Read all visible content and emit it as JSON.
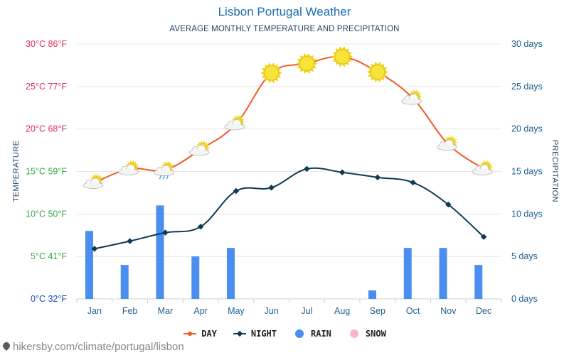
{
  "title": "Lisbon Portugal Weather",
  "subtitle": "AVERAGE MONTHLY TEMPERATURE AND PRECIPITATION",
  "left_axis_title": "TEMPERATURE",
  "right_axis_title": "PRECIPITATION",
  "source": "hikersby.com/climate/portugal/lisbon",
  "colors": {
    "day": "#f05a22",
    "night": "#0e3a52",
    "rain": "#4a8ef0",
    "snow": "#f5b8c8",
    "title": "#1a6fb3"
  },
  "chart_data": {
    "type": "line",
    "categories": [
      "Jan",
      "Feb",
      "Mar",
      "Apr",
      "May",
      "Jun",
      "Jul",
      "Aug",
      "Sep",
      "Oct",
      "Nov",
      "Dec"
    ],
    "series": [
      {
        "name": "DAY",
        "type": "line",
        "axis": "temperature",
        "values": [
          13.7,
          15.3,
          15.2,
          17.6,
          20.6,
          26.6,
          27.7,
          28.5,
          26.7,
          23.6,
          18.2,
          15.3
        ],
        "icons": [
          "sun-cloud",
          "sun-cloud",
          "sun-cloud-rain",
          "sun-cloud",
          "sun-cloud",
          "sun",
          "sun",
          "sun",
          "sun",
          "sun-cloud",
          "sun-cloud",
          "sun-cloud"
        ]
      },
      {
        "name": "NIGHT",
        "type": "line",
        "axis": "temperature",
        "values": [
          5.9,
          6.8,
          7.8,
          8.5,
          12.7,
          13.1,
          15.3,
          14.9,
          14.3,
          13.7,
          11.1,
          7.3
        ]
      },
      {
        "name": "RAIN",
        "type": "bar",
        "axis": "precipitation",
        "values": [
          8,
          4,
          11,
          5,
          6,
          0,
          0,
          0,
          1,
          6,
          6,
          4
        ]
      },
      {
        "name": "SNOW",
        "type": "bar",
        "axis": "precipitation",
        "values": [
          0,
          0,
          0,
          0,
          0,
          0,
          0,
          0,
          0,
          0,
          0,
          0
        ]
      }
    ],
    "left_axis": {
      "ylim": [
        0,
        30
      ],
      "ticks": [
        {
          "value": 0,
          "label": "0°C 32°F",
          "color": "#1a4fbf"
        },
        {
          "value": 5,
          "label": "5°C 41°F",
          "color": "#3aa84a"
        },
        {
          "value": 10,
          "label": "10°C 50°F",
          "color": "#3aa84a"
        },
        {
          "value": 15,
          "label": "15°C 59°F",
          "color": "#3aa84a"
        },
        {
          "value": 20,
          "label": "20°C 68°F",
          "color": "#e0305a"
        },
        {
          "value": 25,
          "label": "25°C 77°F",
          "color": "#e0305a"
        },
        {
          "value": 30,
          "label": "30°C 86°F",
          "color": "#e0305a"
        }
      ]
    },
    "right_axis": {
      "ylim": [
        0,
        30
      ],
      "ticks": [
        {
          "value": 0,
          "label": "0 days"
        },
        {
          "value": 5,
          "label": "5 days"
        },
        {
          "value": 10,
          "label": "10 days"
        },
        {
          "value": 15,
          "label": "15 days"
        },
        {
          "value": 20,
          "label": "20 days"
        },
        {
          "value": 25,
          "label": "25 days"
        },
        {
          "value": 30,
          "label": "30 days"
        }
      ]
    },
    "grid": true,
    "legend": "bottom-center"
  }
}
